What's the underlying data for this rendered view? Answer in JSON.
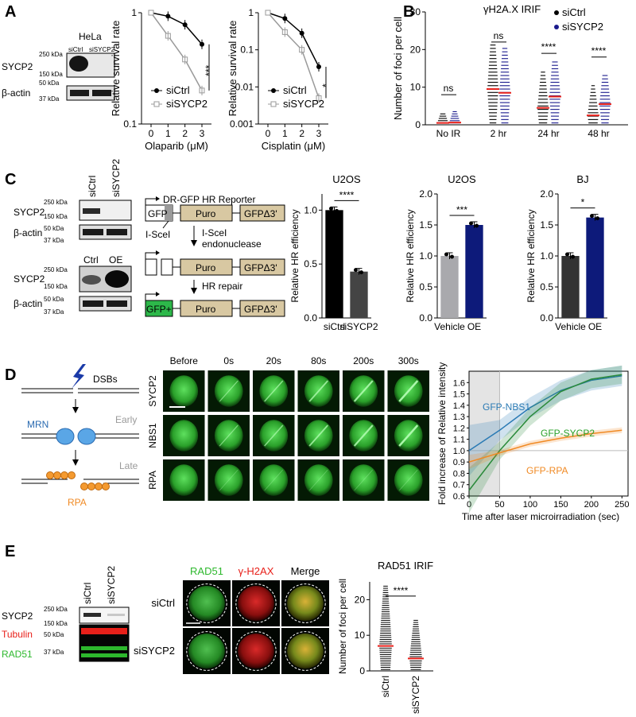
{
  "panels": {
    "A": "A",
    "B": "B",
    "C": "C",
    "D": "D",
    "E": "E"
  },
  "colors": {
    "siCtrl": "#000000",
    "siSYCP2": "#9a9a9a",
    "blue": "#1a1a8c",
    "navy": "#0d1a7a",
    "green": "#2db82d",
    "red": "#e8201a",
    "orange": "#f08a24",
    "tan": "#d8c8a2",
    "gray_bar": "#a9a9ad",
    "dark_bar": "#333333",
    "mrn": "#5aa6e6",
    "rpa_teal": "#2a7ab4",
    "sycp2_green": "#2a8a3a"
  },
  "panelA": {
    "western": {
      "cell": "HeLa",
      "lanes": [
        "siCtrl",
        "siSYCP2"
      ],
      "rows": [
        "SYCP2",
        "β-actin"
      ],
      "kda": [
        "250 kDa",
        "150 kDa",
        "50 kDa",
        "37 kDa"
      ]
    },
    "chart_data": [
      {
        "type": "line",
        "xlabel": "Olaparib (μM)",
        "ylabel": "Relative survival rate",
        "x": [
          0,
          1,
          2,
          3
        ],
        "y_scale": "log",
        "ylim": [
          0.1,
          1
        ],
        "yticks": [
          "1",
          "0.1"
        ],
        "series": [
          {
            "name": "siCtrl",
            "values": [
              1.0,
              0.93,
              0.78,
              0.52
            ]
          },
          {
            "name": "siSYCP2",
            "values": [
              1.0,
              0.62,
              0.38,
              0.2
            ]
          }
        ],
        "annotation": "***"
      },
      {
        "type": "line",
        "xlabel": "Cisplatin (μM)",
        "ylabel": "Relative survival rate",
        "x": [
          0,
          1,
          2,
          3
        ],
        "y_scale": "log",
        "ylim": [
          0.001,
          1
        ],
        "yticks": [
          "1",
          "0.1",
          "0.01",
          "0.001"
        ],
        "series": [
          {
            "name": "siCtrl",
            "values": [
              1.0,
              0.7,
              0.28,
              0.035
            ]
          },
          {
            "name": "siSYCP2",
            "values": [
              1.0,
              0.3,
              0.1,
              0.005
            ]
          }
        ],
        "annotation": "*"
      }
    ]
  },
  "panelB": {
    "chart_data": {
      "type": "scatter",
      "title": "γH2A.X IRIF",
      "ylabel": "Number of foci per cell",
      "categories": [
        "No IR",
        "2 hr",
        "24 hr",
        "48 hr"
      ],
      "ylim": [
        0,
        30
      ],
      "yticks": [
        "0",
        "10",
        "20",
        "30"
      ],
      "series": [
        {
          "name": "siCtrl",
          "values": [
            0.5,
            9.5,
            4.5,
            2.5
          ]
        },
        {
          "name": "siSYCP2",
          "values": [
            0.6,
            8.5,
            7.5,
            5.5
          ]
        }
      ],
      "significance": [
        "ns",
        "ns",
        "****",
        "****"
      ]
    }
  },
  "panelC": {
    "western1": {
      "lanes": [
        "siCtrl",
        "siSYCP2"
      ],
      "rows": [
        "SYCP2",
        "β-actin"
      ],
      "kda": [
        "250 kDa",
        "150 kDa",
        "50 kDa",
        "37 kDa"
      ]
    },
    "western2": {
      "lanes": [
        "Ctrl",
        "OE"
      ],
      "rows": [
        "SYCP2",
        "β-actin"
      ],
      "kda": [
        "250 kDa",
        "150 kDa",
        "50 kDa",
        "37 kDa"
      ]
    },
    "reporter": {
      "title": "DR-GFP HR Reporter",
      "gfp": "GFP",
      "puro": "Puro",
      "gfpd3": "GFPΔ3'",
      "isce": "I-SceI",
      "step1a": "I-SceI",
      "step1b": "endonuclease",
      "step2": "HR repair",
      "gfp_plus": "GFP+"
    },
    "chart_data": [
      {
        "type": "bar",
        "title": "U2OS",
        "ylabel": "Relative HR efficiency",
        "categories": [
          "siCtrl",
          "siSYCP2"
        ],
        "values": [
          1.0,
          0.43
        ],
        "ylim": [
          0,
          1.15
        ],
        "yticks": [
          "0.0",
          "0.5",
          "1.0"
        ],
        "significance": "****"
      },
      {
        "type": "bar",
        "title": "U2OS",
        "ylabel": "Relative HR efficiency",
        "categories": [
          "Vehicle",
          "OE"
        ],
        "values": [
          1.0,
          1.5
        ],
        "ylim": [
          0,
          2.0
        ],
        "yticks": [
          "0.0",
          "0.5",
          "1.0",
          "1.5",
          "2.0"
        ],
        "significance": "***"
      },
      {
        "type": "bar",
        "title": "BJ",
        "ylabel": "Relative HR efficiency",
        "categories": [
          "Vehicle",
          "OE"
        ],
        "values": [
          1.0,
          1.62
        ],
        "ylim": [
          0,
          2.0
        ],
        "yticks": [
          "0.0",
          "0.5",
          "1.0",
          "1.5",
          "2.0"
        ],
        "significance": "*"
      }
    ]
  },
  "panelD": {
    "schematic": {
      "dsbs": "DSBs",
      "mrn": "MRN",
      "early": "Early",
      "late": "Late",
      "rpa": "RPA"
    },
    "timepoints": [
      "Before",
      "0s",
      "20s",
      "80s",
      "200s",
      "300s"
    ],
    "rows": [
      "SYCP2",
      "NBS1",
      "RPA"
    ],
    "chart_data": {
      "type": "line",
      "xlabel": "Time after laser microirradiation (sec)",
      "ylabel": "Fold increase of Relative intensity",
      "xlim": [
        0,
        260
      ],
      "ylim": [
        0.6,
        1.7
      ],
      "xticks": [
        "0",
        "50",
        "100",
        "150",
        "200",
        "250"
      ],
      "yticks": [
        "0.6",
        "0.7",
        "0.8",
        "0.9",
        "1.0",
        "1.1",
        "1.2",
        "1.3",
        "1.4",
        "1.5",
        "1.6"
      ],
      "x": [
        0,
        50,
        100,
        150,
        200,
        250
      ],
      "series": [
        {
          "name": "GFP-NBS1",
          "values": [
            1.0,
            1.18,
            1.38,
            1.53,
            1.62,
            1.66
          ]
        },
        {
          "name": "GFP-SYCP2",
          "values": [
            0.65,
            1.0,
            1.3,
            1.52,
            1.63,
            1.67
          ]
        },
        {
          "name": "GFP-RPA",
          "values": [
            0.9,
            0.98,
            1.06,
            1.11,
            1.15,
            1.18
          ]
        }
      ]
    }
  },
  "panelE": {
    "western": {
      "lanes": [
        "siCtrl",
        "siSYCP2"
      ],
      "rows": [
        "SYCP2",
        "Tubulin",
        "RAD51"
      ],
      "kda": [
        "250 kDa",
        "150 kDa",
        "50 kDa",
        "37 kDa"
      ]
    },
    "columns": [
      "RAD51",
      "γ-H2AX",
      "Merge"
    ],
    "rows": [
      "siCtrl",
      "siSYCP2"
    ],
    "chart_data": {
      "type": "scatter",
      "title": "RAD51 IRIF",
      "ylabel": "Number of foci per cell",
      "categories": [
        "siCtrl",
        "siSYCP2"
      ],
      "values": [
        7,
        3.5
      ],
      "ylim": [
        0,
        25
      ],
      "yticks": [
        "0",
        "10",
        "20"
      ],
      "significance": "****"
    }
  }
}
